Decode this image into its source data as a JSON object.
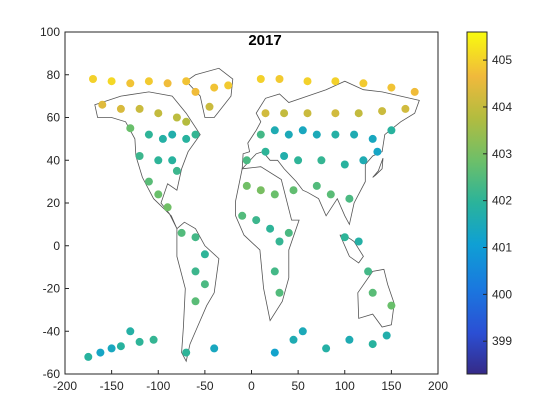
{
  "chart_data": {
    "type": "scatter",
    "title": "2017",
    "xlabel": "",
    "ylabel": "",
    "xlim": [
      -200,
      200
    ],
    "ylim": [
      -60,
      100
    ],
    "xticks": [
      -200,
      -150,
      -100,
      -50,
      0,
      50,
      100,
      150,
      200
    ],
    "yticks": [
      -60,
      -40,
      -20,
      0,
      20,
      40,
      60,
      80,
      100
    ],
    "grid": false,
    "colorbar": {
      "position": "right",
      "colormap": "parula",
      "range": [
        398.3,
        405.6
      ],
      "ticks": [
        399,
        400,
        401,
        402,
        403,
        404,
        405
      ]
    },
    "overlay": "coastlines",
    "points": [
      {
        "x": -170,
        "y": 78,
        "v": 405.0
      },
      {
        "x": -150,
        "y": 77,
        "v": 405.1
      },
      {
        "x": -130,
        "y": 76,
        "v": 404.8
      },
      {
        "x": -110,
        "y": 77,
        "v": 404.9
      },
      {
        "x": -90,
        "y": 76,
        "v": 404.7
      },
      {
        "x": -70,
        "y": 77,
        "v": 404.8
      },
      {
        "x": -60,
        "y": 72,
        "v": 404.7
      },
      {
        "x": -40,
        "y": 74,
        "v": 404.8
      },
      {
        "x": -25,
        "y": 75,
        "v": 404.9
      },
      {
        "x": 10,
        "y": 78,
        "v": 405.0
      },
      {
        "x": 30,
        "y": 78,
        "v": 404.9
      },
      {
        "x": 60,
        "y": 77,
        "v": 405.0
      },
      {
        "x": 90,
        "y": 77,
        "v": 405.0
      },
      {
        "x": 120,
        "y": 76,
        "v": 404.9
      },
      {
        "x": 150,
        "y": 74,
        "v": 404.8
      },
      {
        "x": 175,
        "y": 72,
        "v": 404.7
      },
      {
        "x": -160,
        "y": 66,
        "v": 404.4
      },
      {
        "x": -140,
        "y": 64,
        "v": 404.3
      },
      {
        "x": -120,
        "y": 64,
        "v": 404.1
      },
      {
        "x": -100,
        "y": 62,
        "v": 404.0
      },
      {
        "x": -80,
        "y": 60,
        "v": 403.9
      },
      {
        "x": -70,
        "y": 58,
        "v": 403.8
      },
      {
        "x": -45,
        "y": 65,
        "v": 404.1
      },
      {
        "x": 15,
        "y": 62,
        "v": 404.2
      },
      {
        "x": 35,
        "y": 62,
        "v": 404.0
      },
      {
        "x": 60,
        "y": 62,
        "v": 404.1
      },
      {
        "x": 90,
        "y": 62,
        "v": 404.2
      },
      {
        "x": 115,
        "y": 62,
        "v": 404.0
      },
      {
        "x": 140,
        "y": 63,
        "v": 404.1
      },
      {
        "x": 165,
        "y": 64,
        "v": 404.2
      },
      {
        "x": -130,
        "y": 55,
        "v": 402.8
      },
      {
        "x": -110,
        "y": 52,
        "v": 402.0
      },
      {
        "x": -95,
        "y": 50,
        "v": 401.8
      },
      {
        "x": -85,
        "y": 52,
        "v": 401.7
      },
      {
        "x": -70,
        "y": 50,
        "v": 401.9
      },
      {
        "x": -60,
        "y": 52,
        "v": 402.1
      },
      {
        "x": 10,
        "y": 52,
        "v": 402.3
      },
      {
        "x": 25,
        "y": 54,
        "v": 401.6
      },
      {
        "x": 40,
        "y": 52,
        "v": 401.5
      },
      {
        "x": 55,
        "y": 54,
        "v": 401.4
      },
      {
        "x": 70,
        "y": 52,
        "v": 401.5
      },
      {
        "x": 90,
        "y": 52,
        "v": 401.8
      },
      {
        "x": 110,
        "y": 52,
        "v": 401.6
      },
      {
        "x": 130,
        "y": 50,
        "v": 401.4
      },
      {
        "x": 150,
        "y": 54,
        "v": 401.9
      },
      {
        "x": -120,
        "y": 42,
        "v": 402.2
      },
      {
        "x": -100,
        "y": 40,
        "v": 402.0
      },
      {
        "x": -85,
        "y": 40,
        "v": 401.9
      },
      {
        "x": -80,
        "y": 35,
        "v": 402.2
      },
      {
        "x": -5,
        "y": 40,
        "v": 402.4
      },
      {
        "x": 15,
        "y": 44,
        "v": 402.0
      },
      {
        "x": 35,
        "y": 42,
        "v": 401.7
      },
      {
        "x": 50,
        "y": 40,
        "v": 402.0
      },
      {
        "x": 75,
        "y": 40,
        "v": 402.1
      },
      {
        "x": 100,
        "y": 38,
        "v": 401.9
      },
      {
        "x": 120,
        "y": 40,
        "v": 401.6
      },
      {
        "x": 135,
        "y": 44,
        "v": 401.3
      },
      {
        "x": -110,
        "y": 30,
        "v": 402.6
      },
      {
        "x": -100,
        "y": 24,
        "v": 402.8
      },
      {
        "x": -90,
        "y": 18,
        "v": 402.9
      },
      {
        "x": -5,
        "y": 28,
        "v": 402.9
      },
      {
        "x": 10,
        "y": 26,
        "v": 403.0
      },
      {
        "x": 25,
        "y": 24,
        "v": 402.8
      },
      {
        "x": 45,
        "y": 26,
        "v": 402.7
      },
      {
        "x": 70,
        "y": 28,
        "v": 402.5
      },
      {
        "x": 85,
        "y": 24,
        "v": 402.6
      },
      {
        "x": 105,
        "y": 22,
        "v": 402.4
      },
      {
        "x": -75,
        "y": 6,
        "v": 402.5
      },
      {
        "x": -60,
        "y": 4,
        "v": 402.3
      },
      {
        "x": -50,
        "y": -4,
        "v": 402.0
      },
      {
        "x": -10,
        "y": 14,
        "v": 402.5
      },
      {
        "x": 5,
        "y": 12,
        "v": 402.2
      },
      {
        "x": 20,
        "y": 8,
        "v": 402.0
      },
      {
        "x": 30,
        "y": 2,
        "v": 402.1
      },
      {
        "x": 40,
        "y": 6,
        "v": 402.4
      },
      {
        "x": 100,
        "y": 4,
        "v": 402.0
      },
      {
        "x": 115,
        "y": 2,
        "v": 401.8
      },
      {
        "x": -60,
        "y": -12,
        "v": 402.2
      },
      {
        "x": -50,
        "y": -18,
        "v": 402.4
      },
      {
        "x": -60,
        "y": -26,
        "v": 402.6
      },
      {
        "x": 25,
        "y": -12,
        "v": 402.3
      },
      {
        "x": 30,
        "y": -22,
        "v": 402.5
      },
      {
        "x": 125,
        "y": -12,
        "v": 402.3
      },
      {
        "x": 130,
        "y": -22,
        "v": 402.6
      },
      {
        "x": 150,
        "y": -28,
        "v": 402.8
      },
      {
        "x": -175,
        "y": -52,
        "v": 401.9
      },
      {
        "x": -162,
        "y": -50,
        "v": 401.3
      },
      {
        "x": -150,
        "y": -48,
        "v": 401.4
      },
      {
        "x": -140,
        "y": -47,
        "v": 401.9
      },
      {
        "x": -130,
        "y": -40,
        "v": 401.8
      },
      {
        "x": -120,
        "y": -45,
        "v": 402.0
      },
      {
        "x": -105,
        "y": -44,
        "v": 402.1
      },
      {
        "x": -70,
        "y": -50,
        "v": 402.0
      },
      {
        "x": -40,
        "y": -48,
        "v": 401.4
      },
      {
        "x": 25,
        "y": -50,
        "v": 401.2
      },
      {
        "x": 45,
        "y": -44,
        "v": 401.6
      },
      {
        "x": 55,
        "y": -40,
        "v": 401.5
      },
      {
        "x": 80,
        "y": -48,
        "v": 401.8
      },
      {
        "x": 105,
        "y": -44,
        "v": 401.6
      },
      {
        "x": 130,
        "y": -46,
        "v": 401.9
      },
      {
        "x": 145,
        "y": -42,
        "v": 401.7
      }
    ]
  }
}
